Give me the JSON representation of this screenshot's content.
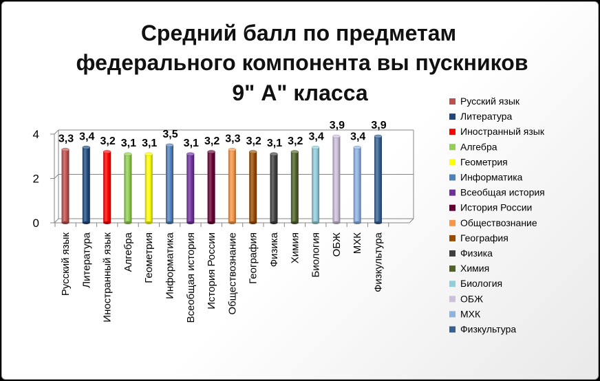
{
  "chart_data": {
    "type": "bar",
    "title_lines": [
      "Средний балл по предметам",
      "федерального компонента вы пускников",
      "9\" А\" класса"
    ],
    "xlabel": "",
    "ylabel": "",
    "ylim": [
      0,
      4
    ],
    "yticks": [
      "0",
      "2",
      "4"
    ],
    "grid": true,
    "legend_position": "right",
    "categories": [
      "Русский язык",
      "Литература",
      "Иностранный язык",
      "Алгебра",
      "Геометрия",
      "Информатика",
      "Всеобщая история",
      "История России",
      "Обществознание",
      "География",
      "Физика",
      "Химия",
      "Биология",
      "ОБЖ",
      "МХК",
      "Физкультура"
    ],
    "values": [
      3.3,
      3.4,
      3.2,
      3.1,
      3.1,
      3.5,
      3.1,
      3.2,
      3.3,
      3.2,
      3.1,
      3.2,
      3.4,
      3.9,
      3.4,
      3.9
    ],
    "value_labels": [
      "3,3",
      "3,4",
      "3,2",
      "3,1",
      "3,1",
      "3,5",
      "3,1",
      "3,2",
      "3,3",
      "3,2",
      "3,1",
      "3,2",
      "3,4",
      "3,9",
      "3,4",
      "3,9"
    ],
    "colors": [
      "#c0504d",
      "#1f497d",
      "#ff0000",
      "#92d050",
      "#ffff00",
      "#4f81bd",
      "#7030a0",
      "#660033",
      "#f79646",
      "#994c00",
      "#3f3f3f",
      "#4f6228",
      "#92cddc",
      "#ccc0da",
      "#8db3e2",
      "#366092"
    ]
  }
}
